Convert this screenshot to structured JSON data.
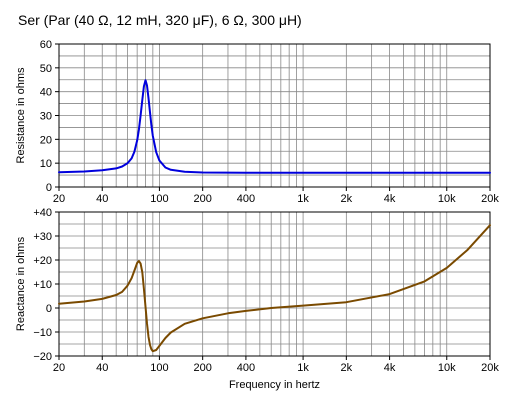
{
  "title": "Ser (Par (40 Ω, 12 mH, 320 μF), 6 Ω, 300 μH)",
  "colors": {
    "resistance": "#0000dd",
    "reactance": "#7a4a00",
    "grid": "#888888",
    "frame": "#000000"
  },
  "chart_data": [
    {
      "type": "line",
      "ylabel": "Resistance in ohms",
      "xlabel": "",
      "x_scale": "log",
      "xlim": [
        20,
        20000
      ],
      "ylim": [
        0,
        60
      ],
      "x_tick_values": [
        20,
        40,
        100,
        200,
        400,
        1000,
        2000,
        4000,
        10000,
        20000
      ],
      "x_tick_labels": [
        "20",
        "40",
        "100",
        "200",
        "400",
        "1k",
        "2k",
        "4k",
        "10k",
        "20k"
      ],
      "y_tick_values": [
        0,
        10,
        20,
        30,
        40,
        50,
        60
      ],
      "y_tick_labels": [
        "0",
        "10",
        "20",
        "30",
        "40",
        "50",
        "60"
      ],
      "grid": true,
      "series": [
        {
          "color": "#0000dd",
          "x": [
            20,
            30,
            40,
            50,
            55,
            60,
            64,
            67,
            70,
            72,
            74,
            76,
            78,
            80,
            82,
            84,
            86,
            88,
            90,
            95,
            100,
            110,
            120,
            150,
            200,
            400,
            1000,
            2000,
            4000,
            10000,
            20000
          ],
          "y": [
            6.2,
            6.5,
            7.0,
            7.8,
            8.6,
            10.0,
            12.0,
            14.8,
            19.6,
            24.1,
            30.0,
            36.5,
            42.2,
            44.8,
            42.6,
            37.3,
            31.3,
            25.9,
            21.5,
            14.6,
            11.1,
            8.2,
            7.2,
            6.4,
            6.1,
            6.0,
            6.0,
            6.0,
            6.0,
            6.0,
            6.0
          ]
        }
      ]
    },
    {
      "type": "line",
      "ylabel": "Reactance in ohms",
      "xlabel": "Frequency in hertz",
      "x_scale": "log",
      "xlim": [
        20,
        20000
      ],
      "ylim": [
        -20,
        40
      ],
      "x_tick_values": [
        20,
        40,
        100,
        200,
        400,
        1000,
        2000,
        4000,
        10000,
        20000
      ],
      "x_tick_labels": [
        "20",
        "40",
        "100",
        "200",
        "400",
        "1k",
        "2k",
        "4k",
        "10k",
        "20k"
      ],
      "y_tick_values": [
        -20,
        -10,
        0,
        10,
        20,
        30,
        40
      ],
      "y_tick_labels": [
        "−20",
        "−10",
        "0",
        "+10",
        "+20",
        "+30",
        "+40"
      ],
      "grid": true,
      "series": [
        {
          "color": "#7a4a00",
          "x": [
            20,
            30,
            40,
            50,
            55,
            60,
            64,
            67,
            70,
            72,
            74,
            76,
            78,
            80,
            82,
            84,
            86,
            88,
            90,
            95,
            100,
            110,
            120,
            150,
            200,
            300,
            400,
            600,
            1000,
            2000,
            4000,
            7000,
            10000,
            14000,
            20000
          ],
          "y": [
            1.8,
            2.7,
            3.8,
            5.4,
            6.7,
            9.3,
            12.4,
            15.6,
            18.8,
            19.6,
            18.5,
            14.9,
            8.0,
            0.6,
            -6.5,
            -12.0,
            -15.4,
            -17.2,
            -18.0,
            -17.5,
            -15.8,
            -12.5,
            -10.2,
            -6.6,
            -4.3,
            -2.2,
            -1.2,
            0.0,
            1.0,
            2.4,
            5.8,
            11.1,
            16.7,
            24.3,
            34.5
          ]
        }
      ]
    }
  ]
}
